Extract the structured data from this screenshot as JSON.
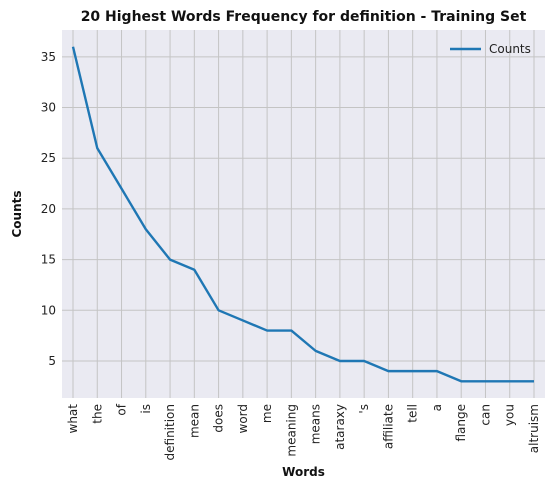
{
  "chart_data": {
    "type": "line",
    "title": "20 Highest Words Frequency for definition - Training Set",
    "xlabel": "Words",
    "ylabel": "Counts",
    "categories": [
      "what",
      "the",
      "of",
      "is",
      "definition",
      "mean",
      "does",
      "word",
      "me",
      "meaning",
      "means",
      "ataraxy",
      "'s",
      "affiliate",
      "tell",
      "a",
      "flange",
      "can",
      "you",
      "altruism"
    ],
    "series": [
      {
        "name": "Counts",
        "values": [
          36,
          26,
          22,
          18,
          15,
          14,
          10,
          9,
          8,
          8,
          6,
          5,
          5,
          4,
          4,
          4,
          3,
          3,
          3,
          3
        ],
        "color": "#1f77b4"
      }
    ],
    "yticks": [
      5,
      10,
      15,
      20,
      25,
      30,
      35
    ],
    "ylim": [
      1.35,
      37.65
    ],
    "grid": true,
    "legend": "top-right",
    "background": "#eaeaf2"
  }
}
